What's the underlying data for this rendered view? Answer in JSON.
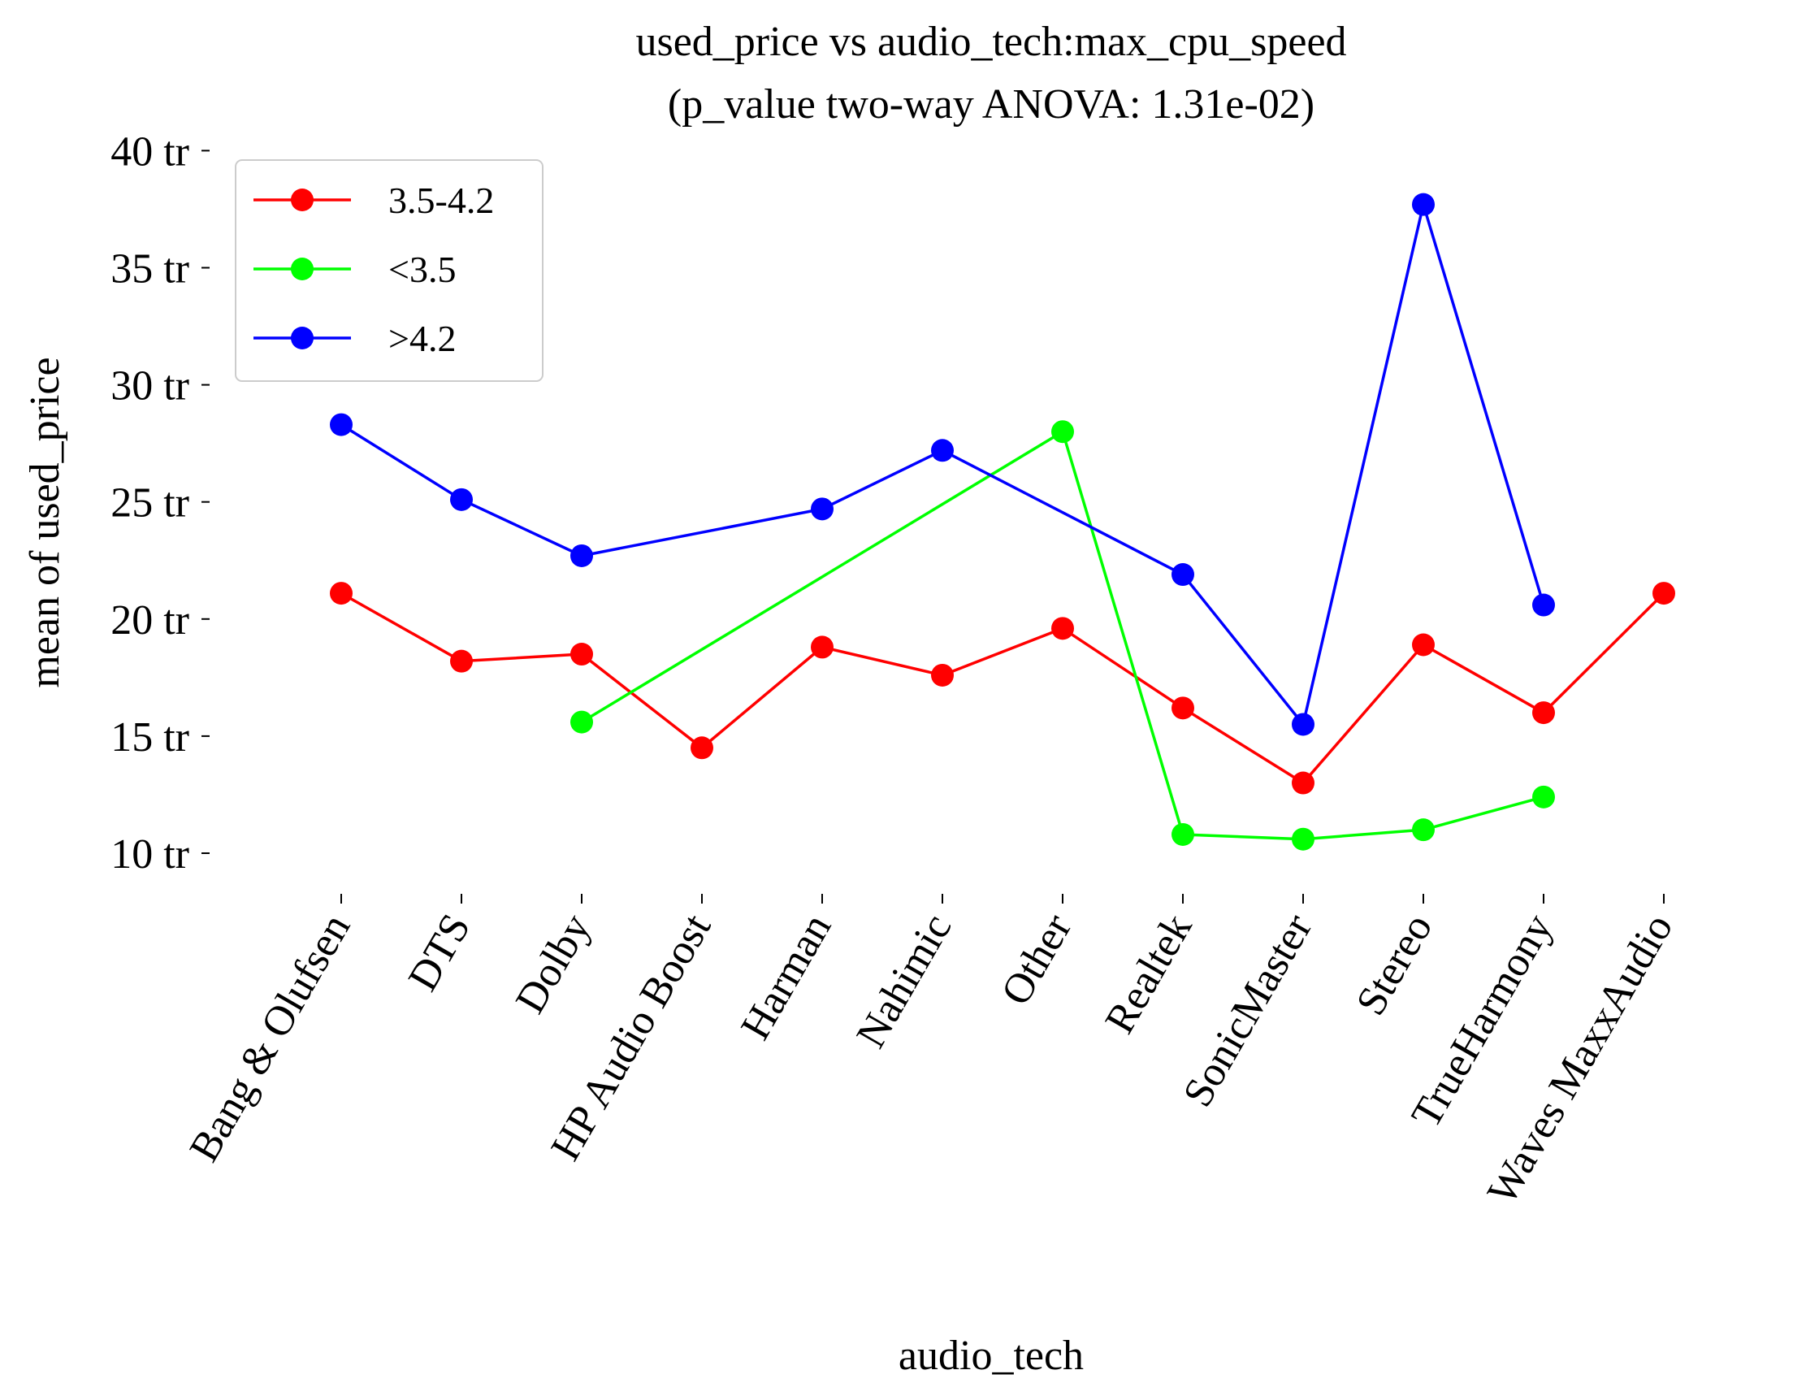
{
  "chart_data": {
    "type": "line",
    "title": "used_price vs audio_tech:max_cpu_speed",
    "subtitle": "(p_value two-way ANOVA: 1.31e-02)",
    "xlabel": "audio_tech",
    "ylabel": "mean of used_price",
    "ylim": [
      7.5,
      41
    ],
    "yticks": [
      10,
      15,
      20,
      25,
      30,
      35,
      40
    ],
    "ytick_suffix": " tr",
    "categories": [
      "Bang & Olufsen",
      "DTS",
      "Dolby",
      "HP Audio Boost",
      "Harman",
      "Nahimic",
      "Other",
      "Realtek",
      "SonicMaster",
      "Stereo",
      "TrueHarmony",
      "Waves MaxxAudio"
    ],
    "grid": false,
    "legend_position": "top-left",
    "series": [
      {
        "name": "3.5-4.2",
        "color": "#ff0000",
        "values": [
          21.1,
          18.2,
          18.5,
          14.5,
          18.8,
          17.6,
          19.6,
          16.2,
          13.0,
          18.9,
          16.0,
          21.1
        ]
      },
      {
        "name": "<3.5",
        "color": "#00ff00",
        "values": [
          null,
          null,
          15.6,
          null,
          null,
          null,
          28.0,
          10.8,
          10.6,
          11.0,
          12.4,
          null
        ]
      },
      {
        "name": ">4.2",
        "color": "#0000ff",
        "values": [
          28.3,
          25.1,
          22.7,
          null,
          24.7,
          27.2,
          null,
          21.9,
          15.5,
          37.7,
          20.6,
          null
        ]
      }
    ]
  }
}
